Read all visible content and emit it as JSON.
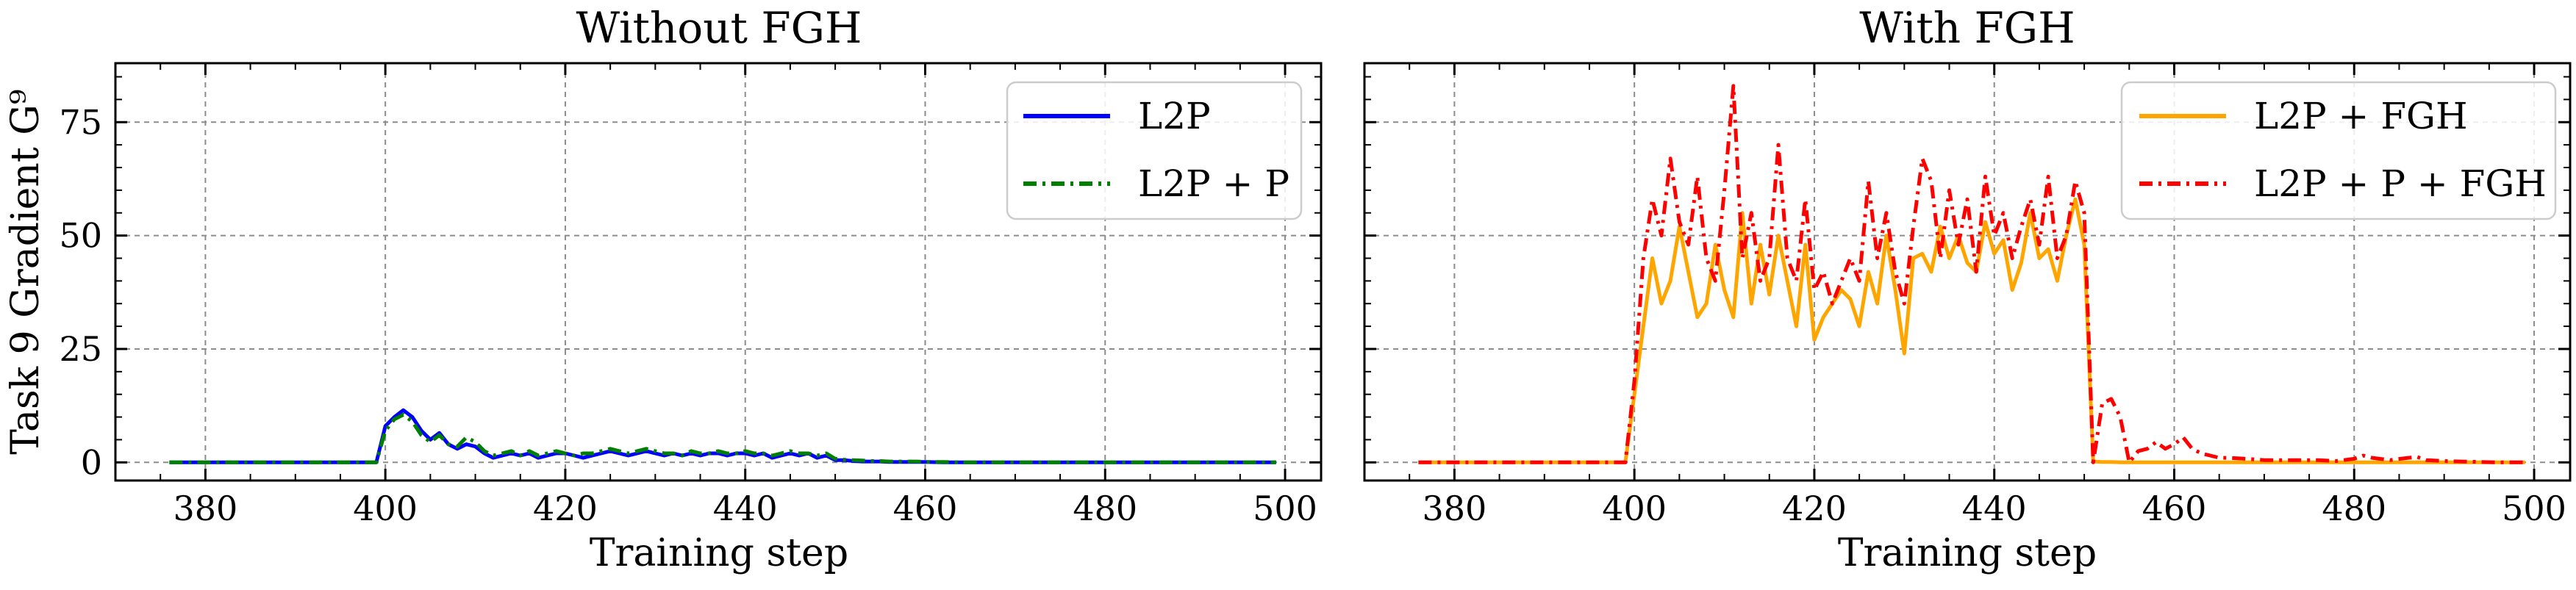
{
  "chart_data": [
    {
      "type": "line",
      "title": "Without FGH",
      "xlabel": "Training step",
      "ylabel": "Task 9 Gradient G⁹",
      "xlim": [
        370,
        504
      ],
      "ylim": [
        -4,
        88
      ],
      "xticks": [
        380,
        400,
        420,
        440,
        460,
        480,
        500
      ],
      "yticks": [
        0,
        25,
        50,
        75
      ],
      "grid": true,
      "legend_position": "top-right",
      "series": [
        {
          "name": "L2P",
          "color": "#0000ff",
          "style": "solid",
          "x": [
            376,
            378,
            380,
            382,
            384,
            386,
            388,
            390,
            392,
            394,
            396,
            398,
            399,
            400,
            401,
            402,
            403,
            404,
            405,
            406,
            407,
            408,
            409,
            410,
            411,
            412,
            413,
            414,
            415,
            416,
            417,
            418,
            419,
            420,
            421,
            422,
            423,
            424,
            425,
            426,
            427,
            428,
            429,
            430,
            431,
            432,
            433,
            434,
            435,
            436,
            437,
            438,
            439,
            440,
            441,
            442,
            443,
            444,
            445,
            446,
            447,
            448,
            449,
            450,
            451,
            452,
            453,
            454,
            455,
            456,
            457,
            458,
            459,
            460,
            462,
            464,
            466,
            468,
            470,
            472,
            474,
            476,
            478,
            480,
            482,
            484,
            486,
            488,
            490,
            492,
            494,
            496,
            498,
            499
          ],
          "y": [
            0,
            0,
            0,
            0,
            0,
            0,
            0,
            0,
            0,
            0,
            0,
            0,
            0,
            8,
            10,
            11.5,
            10,
            7,
            5,
            6.5,
            4,
            3,
            4,
            3.5,
            2,
            1,
            1.5,
            2,
            1.5,
            2,
            1,
            1.5,
            2,
            2,
            1.5,
            1,
            1.5,
            2,
            2.5,
            2,
            1.5,
            2,
            2.5,
            2,
            1.5,
            2,
            1.5,
            2,
            1.5,
            2,
            2,
            1.5,
            2,
            2,
            1.5,
            2,
            1,
            1.5,
            2,
            1.5,
            2,
            1,
            1.5,
            0.5,
            0.5,
            0.3,
            0.2,
            0.2,
            0.2,
            0.1,
            0.1,
            0.1,
            0.1,
            0.1,
            0,
            0,
            0,
            0,
            0,
            0,
            0,
            0,
            0,
            0,
            0,
            0,
            0,
            0,
            0,
            0,
            0,
            0,
            0,
            0
          ]
        },
        {
          "name": "L2P + P",
          "color": "#008000",
          "style": "dashdot",
          "x": [
            376,
            378,
            380,
            382,
            384,
            386,
            388,
            390,
            392,
            394,
            396,
            398,
            399,
            400,
            401,
            402,
            403,
            404,
            405,
            406,
            407,
            408,
            409,
            410,
            411,
            412,
            413,
            414,
            415,
            416,
            417,
            418,
            419,
            420,
            421,
            422,
            423,
            424,
            425,
            426,
            427,
            428,
            429,
            430,
            431,
            432,
            433,
            434,
            435,
            436,
            437,
            438,
            439,
            440,
            441,
            442,
            443,
            444,
            445,
            446,
            447,
            448,
            449,
            450,
            451,
            452,
            453,
            454,
            455,
            456,
            457,
            458,
            459,
            460,
            462,
            464,
            466,
            468,
            470,
            472,
            474,
            476,
            478,
            480,
            482,
            484,
            486,
            488,
            490,
            492,
            494,
            496,
            498,
            499
          ],
          "y": [
            0,
            0,
            0,
            0,
            0,
            0,
            0,
            0,
            0,
            0,
            0,
            0,
            0,
            7,
            9.5,
            10.5,
            9,
            6,
            4.5,
            6,
            4,
            3.5,
            5.5,
            4.5,
            2.5,
            1.5,
            2,
            2.5,
            1.5,
            2.5,
            1.5,
            2,
            2.5,
            2,
            1.5,
            2,
            2,
            2.5,
            3,
            2.5,
            2,
            2.5,
            3,
            2.5,
            2,
            2,
            1.5,
            2.5,
            2,
            2,
            2.5,
            2,
            2,
            2.5,
            2,
            2,
            1.5,
            2,
            2.5,
            2,
            2,
            1.5,
            2,
            0.8,
            0.6,
            0.5,
            0.4,
            0.3,
            0.3,
            0.2,
            0.2,
            0.2,
            0.2,
            0.1,
            0.1,
            0,
            0,
            0,
            0,
            0,
            0,
            0,
            0,
            0,
            0,
            0,
            0,
            0,
            0,
            0,
            0,
            0,
            0,
            0
          ]
        }
      ]
    },
    {
      "type": "line",
      "title": "With FGH",
      "xlabel": "Training step",
      "ylabel": "",
      "xlim": [
        370,
        504
      ],
      "ylim": [
        -4,
        88
      ],
      "xticks": [
        380,
        400,
        420,
        440,
        460,
        480,
        500
      ],
      "yticks": [
        0,
        25,
        50,
        75
      ],
      "grid": true,
      "legend_position": "top-right",
      "series": [
        {
          "name": "L2P + FGH",
          "color": "#ffa500",
          "style": "solid",
          "x": [
            376,
            378,
            380,
            382,
            384,
            386,
            388,
            390,
            392,
            394,
            396,
            398,
            399,
            400,
            401,
            402,
            403,
            404,
            405,
            406,
            407,
            408,
            409,
            410,
            411,
            412,
            413,
            414,
            415,
            416,
            417,
            418,
            419,
            420,
            421,
            422,
            423,
            424,
            425,
            426,
            427,
            428,
            429,
            430,
            431,
            432,
            433,
            434,
            435,
            436,
            437,
            438,
            439,
            440,
            441,
            442,
            443,
            444,
            445,
            446,
            447,
            448,
            449,
            450,
            451,
            452,
            453,
            454,
            455,
            456,
            457,
            458,
            459,
            460,
            462,
            464,
            466,
            468,
            470,
            472,
            474,
            476,
            478,
            480,
            482,
            484,
            486,
            488,
            490,
            492,
            494,
            496,
            498,
            499
          ],
          "y": [
            0,
            0,
            0,
            0,
            0,
            0,
            0,
            0,
            0,
            0,
            0,
            0,
            0,
            15,
            30,
            45,
            35,
            40,
            52,
            42,
            32,
            35,
            48,
            38,
            32,
            55,
            35,
            48,
            37,
            50,
            40,
            30,
            48,
            27,
            32,
            35,
            38,
            36,
            30,
            42,
            35,
            50,
            38,
            24,
            45,
            46,
            42,
            52,
            45,
            50,
            44,
            42,
            53,
            46,
            49,
            38,
            44,
            55,
            45,
            47,
            40,
            50,
            58,
            48,
            0.2,
            0.1,
            0.1,
            0,
            0,
            0,
            0,
            0,
            0,
            0,
            0,
            0,
            0,
            0,
            0,
            0,
            0,
            0,
            0,
            0,
            0,
            0,
            0,
            0,
            0,
            0,
            0,
            0,
            0,
            0
          ]
        },
        {
          "name": "L2P + P + FGH",
          "color": "#ff0000",
          "style": "dashdot",
          "x": [
            376,
            378,
            380,
            382,
            384,
            386,
            388,
            390,
            392,
            394,
            396,
            398,
            399,
            400,
            401,
            402,
            403,
            404,
            405,
            406,
            407,
            408,
            409,
            410,
            411,
            412,
            413,
            414,
            415,
            416,
            417,
            418,
            419,
            420,
            421,
            422,
            423,
            424,
            425,
            426,
            427,
            428,
            429,
            430,
            431,
            432,
            433,
            434,
            435,
            436,
            437,
            438,
            439,
            440,
            441,
            442,
            443,
            444,
            445,
            446,
            447,
            448,
            449,
            450,
            451,
            452,
            453,
            454,
            455,
            456,
            457,
            458,
            459,
            460,
            461,
            462,
            463,
            464,
            465,
            466,
            468,
            470,
            472,
            474,
            476,
            478,
            480,
            481,
            482,
            484,
            486,
            487,
            488,
            490,
            492,
            494,
            496,
            498,
            499
          ],
          "y": [
            0,
            0,
            0,
            0,
            0,
            0,
            0,
            0,
            0,
            0,
            0,
            0,
            0,
            18,
            45,
            58,
            50,
            67,
            53,
            48,
            63,
            45,
            40,
            60,
            83,
            45,
            55,
            40,
            45,
            70,
            45,
            40,
            58,
            38,
            42,
            35,
            40,
            45,
            40,
            62,
            45,
            55,
            42,
            35,
            52,
            67,
            62,
            45,
            60,
            48,
            58,
            42,
            63,
            50,
            55,
            45,
            52,
            58,
            48,
            63,
            45,
            50,
            62,
            55,
            0,
            13,
            14,
            10,
            0,
            2.5,
            3,
            4.5,
            3,
            4,
            5.5,
            3,
            2,
            1.5,
            1,
            1,
            0.8,
            0.5,
            0.5,
            0.5,
            0.5,
            0.3,
            0.8,
            1.5,
            1,
            0.5,
            1,
            1.2,
            0.5,
            0.3,
            0.2,
            0.1,
            0,
            0,
            0
          ]
        }
      ]
    }
  ]
}
